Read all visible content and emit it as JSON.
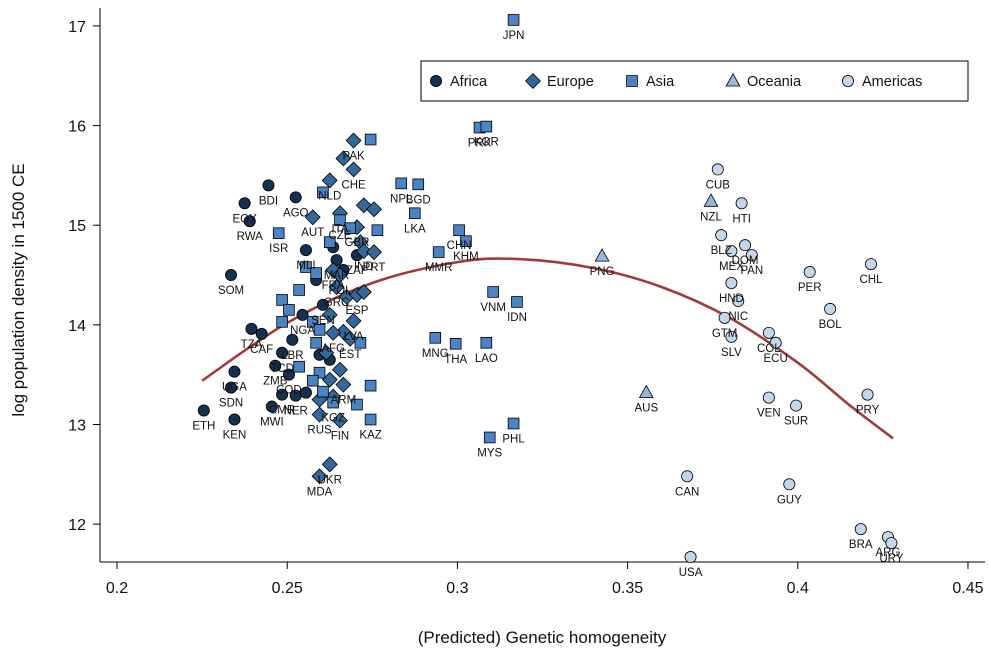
{
  "chart_data": {
    "type": "scatter",
    "xlabel": "(Predicted) Genetic homogeneity",
    "ylabel": "log population density in 1500 CE",
    "xlim": [
      0.195,
      0.455
    ],
    "ylim": [
      11.62,
      17.18
    ],
    "x_ticks": [
      "0.2",
      "0.25",
      "0.3",
      "0.35",
      "0.4",
      "0.45"
    ],
    "y_ticks": [
      "12",
      "13",
      "14",
      "15",
      "16",
      "17"
    ],
    "legend_position": "top-right",
    "colors": {
      "Africa": "#16304f",
      "Europe": "#35689a",
      "Asia": "#4a84c4",
      "Oceania": "#94b6dc",
      "Americas": "#c4d6ea",
      "fit": "#a33a3a"
    },
    "fit_curve": {
      "x": [
        0.225,
        0.25,
        0.275,
        0.3,
        0.318,
        0.34,
        0.36,
        0.38,
        0.4,
        0.415,
        0.428
      ],
      "y": [
        13.44,
        14.02,
        14.42,
        14.63,
        14.66,
        14.57,
        14.38,
        14.07,
        13.62,
        13.2,
        12.86
      ]
    },
    "series": [
      {
        "name": "Africa",
        "marker": "circle",
        "points": [
          {
            "x": 0.2255,
            "y": 13.14,
            "label": "ETH"
          },
          {
            "x": 0.2345,
            "y": 13.05,
            "label": "KEN"
          },
          {
            "x": 0.2335,
            "y": 13.37,
            "label": "SDN"
          },
          {
            "x": 0.2345,
            "y": 13.53,
            "label": "UGA"
          },
          {
            "x": 0.2335,
            "y": 14.5,
            "label": "SOM"
          },
          {
            "x": 0.2375,
            "y": 15.22,
            "label": "EGY"
          },
          {
            "x": 0.239,
            "y": 15.04,
            "label": "RWA"
          },
          {
            "x": 0.2445,
            "y": 15.4,
            "label": "BDI"
          },
          {
            "x": 0.2525,
            "y": 15.28,
            "label": "AGO"
          },
          {
            "x": 0.2395,
            "y": 13.96,
            "label": "TZA"
          },
          {
            "x": 0.2425,
            "y": 13.91,
            "label": "CAF"
          },
          {
            "x": 0.2455,
            "y": 13.18,
            "label": "MWI"
          },
          {
            "x": 0.2465,
            "y": 13.59,
            "label": "ZMB"
          },
          {
            "x": 0.2485,
            "y": 13.72,
            "label": "TCD"
          },
          {
            "x": 0.2485,
            "y": 13.3,
            "label": "CMR"
          },
          {
            "x": 0.2505,
            "y": 13.5,
            "label": "COD"
          },
          {
            "x": 0.2515,
            "y": 13.85,
            "label": "LBR"
          },
          {
            "x": 0.2525,
            "y": 13.29,
            "label": "NER"
          },
          {
            "x": 0.2545,
            "y": 14.1,
            "label": "NGA"
          },
          {
            "x": 0.2555,
            "y": 14.75,
            "label": "MLI"
          },
          {
            "x": 0.2555,
            "y": 13.32,
            "label": ""
          },
          {
            "x": 0.2585,
            "y": 14.45,
            "label": ""
          },
          {
            "x": 0.2595,
            "y": 13.7,
            "label": ""
          },
          {
            "x": 0.2605,
            "y": 14.2,
            "label": "SEN"
          },
          {
            "x": 0.2625,
            "y": 13.65,
            "label": ""
          },
          {
            "x": 0.2635,
            "y": 14.78,
            "label": ""
          },
          {
            "x": 0.2645,
            "y": 14.65,
            "label": "MAR"
          },
          {
            "x": 0.2665,
            "y": 14.55,
            "label": ""
          },
          {
            "x": 0.2705,
            "y": 14.7,
            "label": "ZAF"
          }
        ]
      },
      {
        "name": "Europe",
        "marker": "diamond",
        "points": [
          {
            "x": 0.2695,
            "y": 15.85,
            "label": "PAK"
          },
          {
            "x": 0.2665,
            "y": 15.67,
            "label": ""
          },
          {
            "x": 0.2695,
            "y": 15.56,
            "label": "CHE"
          },
          {
            "x": 0.2625,
            "y": 15.45,
            "label": "NLD"
          },
          {
            "x": 0.2725,
            "y": 15.2,
            "label": ""
          },
          {
            "x": 0.2755,
            "y": 15.16,
            "label": ""
          },
          {
            "x": 0.2575,
            "y": 15.08,
            "label": "AUT"
          },
          {
            "x": 0.2655,
            "y": 15.12,
            "label": "ITA"
          },
          {
            "x": 0.2705,
            "y": 14.98,
            "label": "GBR"
          },
          {
            "x": 0.2715,
            "y": 14.83,
            "label": ""
          },
          {
            "x": 0.2725,
            "y": 14.74,
            "label": "IND"
          },
          {
            "x": 0.2755,
            "y": 14.73,
            "label": "PRT"
          },
          {
            "x": 0.2635,
            "y": 14.55,
            "label": "FRA"
          },
          {
            "x": 0.2655,
            "y": 14.5,
            "label": "POL"
          },
          {
            "x": 0.2645,
            "y": 14.38,
            "label": "GRC"
          },
          {
            "x": 0.2675,
            "y": 14.28,
            "label": ""
          },
          {
            "x": 0.2705,
            "y": 14.3,
            "label": "ESP"
          },
          {
            "x": 0.2725,
            "y": 14.33,
            "label": ""
          },
          {
            "x": 0.2695,
            "y": 14.04,
            "label": "LVA"
          },
          {
            "x": 0.2665,
            "y": 13.93,
            "label": ""
          },
          {
            "x": 0.2685,
            "y": 13.86,
            "label": "EST"
          },
          {
            "x": 0.2635,
            "y": 13.92,
            "label": "AFG"
          },
          {
            "x": 0.2625,
            "y": 14.1,
            "label": ""
          },
          {
            "x": 0.2615,
            "y": 13.72,
            "label": ""
          },
          {
            "x": 0.2655,
            "y": 13.55,
            "label": ""
          },
          {
            "x": 0.2625,
            "y": 13.45,
            "label": ""
          },
          {
            "x": 0.2665,
            "y": 13.4,
            "label": "ARM"
          },
          {
            "x": 0.2595,
            "y": 13.25,
            "label": ""
          },
          {
            "x": 0.2635,
            "y": 13.28,
            "label": ""
          },
          {
            "x": 0.2595,
            "y": 13.1,
            "label": "RUS"
          },
          {
            "x": 0.2655,
            "y": 13.04,
            "label": "FIN"
          },
          {
            "x": 0.2625,
            "y": 12.6,
            "label": "UKR"
          },
          {
            "x": 0.2595,
            "y": 12.48,
            "label": "MDA"
          }
        ]
      },
      {
        "name": "Asia",
        "marker": "square",
        "points": [
          {
            "x": 0.3165,
            "y": 17.06,
            "label": "JPN"
          },
          {
            "x": 0.3065,
            "y": 15.98,
            "label": "PRK"
          },
          {
            "x": 0.3085,
            "y": 15.99,
            "label": "KOR"
          },
          {
            "x": 0.2745,
            "y": 15.86,
            "label": ""
          },
          {
            "x": 0.2835,
            "y": 15.42,
            "label": "NPL"
          },
          {
            "x": 0.2885,
            "y": 15.41,
            "label": "BGD"
          },
          {
            "x": 0.2875,
            "y": 15.12,
            "label": "LKA"
          },
          {
            "x": 0.2605,
            "y": 15.33,
            "label": ""
          },
          {
            "x": 0.2475,
            "y": 14.92,
            "label": "ISR"
          },
          {
            "x": 0.2655,
            "y": 15.05,
            "label": "CZE"
          },
          {
            "x": 0.2685,
            "y": 14.97,
            "label": ""
          },
          {
            "x": 0.2765,
            "y": 14.95,
            "label": ""
          },
          {
            "x": 0.2625,
            "y": 14.83,
            "label": ""
          },
          {
            "x": 0.3005,
            "y": 14.95,
            "label": "CHN"
          },
          {
            "x": 0.3025,
            "y": 14.84,
            "label": "KHM"
          },
          {
            "x": 0.2945,
            "y": 14.73,
            "label": "MMR"
          },
          {
            "x": 0.3105,
            "y": 14.33,
            "label": "VNM"
          },
          {
            "x": 0.3175,
            "y": 14.23,
            "label": "IDN"
          },
          {
            "x": 0.2935,
            "y": 13.87,
            "label": "MNG"
          },
          {
            "x": 0.2995,
            "y": 13.81,
            "label": "THA"
          },
          {
            "x": 0.3085,
            "y": 13.82,
            "label": "LAO"
          },
          {
            "x": 0.3095,
            "y": 12.87,
            "label": "MYS"
          },
          {
            "x": 0.3165,
            "y": 13.01,
            "label": "PHL"
          },
          {
            "x": 0.2555,
            "y": 14.58,
            "label": ""
          },
          {
            "x": 0.2585,
            "y": 14.52,
            "label": ""
          },
          {
            "x": 0.2535,
            "y": 14.35,
            "label": ""
          },
          {
            "x": 0.2485,
            "y": 14.25,
            "label": ""
          },
          {
            "x": 0.2505,
            "y": 14.15,
            "label": ""
          },
          {
            "x": 0.2485,
            "y": 14.03,
            "label": ""
          },
          {
            "x": 0.2575,
            "y": 14.03,
            "label": ""
          },
          {
            "x": 0.2595,
            "y": 13.95,
            "label": ""
          },
          {
            "x": 0.2585,
            "y": 13.82,
            "label": ""
          },
          {
            "x": 0.2535,
            "y": 13.58,
            "label": ""
          },
          {
            "x": 0.2595,
            "y": 13.52,
            "label": ""
          },
          {
            "x": 0.2575,
            "y": 13.44,
            "label": ""
          },
          {
            "x": 0.2605,
            "y": 13.33,
            "label": ""
          },
          {
            "x": 0.2635,
            "y": 13.22,
            "label": "KGZ"
          },
          {
            "x": 0.2705,
            "y": 13.2,
            "label": ""
          },
          {
            "x": 0.2745,
            "y": 13.39,
            "label": ""
          },
          {
            "x": 0.2745,
            "y": 13.05,
            "label": "KAZ"
          },
          {
            "x": 0.2715,
            "y": 13.82,
            "label": ""
          }
        ]
      },
      {
        "name": "Oceania",
        "marker": "triangle",
        "points": [
          {
            "x": 0.3745,
            "y": 15.24,
            "label": "NZL"
          },
          {
            "x": 0.3425,
            "y": 14.69,
            "label": "PNG"
          },
          {
            "x": 0.3555,
            "y": 13.32,
            "label": "AUS"
          }
        ]
      },
      {
        "name": "Americas",
        "marker": "circle",
        "points": [
          {
            "x": 0.3765,
            "y": 15.56,
            "label": "CUB"
          },
          {
            "x": 0.3835,
            "y": 15.22,
            "label": "HTI"
          },
          {
            "x": 0.3775,
            "y": 14.9,
            "label": "BLZ"
          },
          {
            "x": 0.3805,
            "y": 14.74,
            "label": "MEX"
          },
          {
            "x": 0.3845,
            "y": 14.8,
            "label": "DOM"
          },
          {
            "x": 0.3865,
            "y": 14.7,
            "label": "PAN"
          },
          {
            "x": 0.3805,
            "y": 14.42,
            "label": "HND"
          },
          {
            "x": 0.3825,
            "y": 14.24,
            "label": "NIC"
          },
          {
            "x": 0.3785,
            "y": 14.07,
            "label": "GTM"
          },
          {
            "x": 0.3805,
            "y": 13.88,
            "label": "SLV"
          },
          {
            "x": 0.3915,
            "y": 13.92,
            "label": "COL"
          },
          {
            "x": 0.3935,
            "y": 13.82,
            "label": "ECU"
          },
          {
            "x": 0.4035,
            "y": 14.53,
            "label": "PER"
          },
          {
            "x": 0.4215,
            "y": 14.61,
            "label": "CHL"
          },
          {
            "x": 0.4095,
            "y": 14.16,
            "label": "BOL"
          },
          {
            "x": 0.3915,
            "y": 13.27,
            "label": "VEN"
          },
          {
            "x": 0.3995,
            "y": 13.19,
            "label": "SUR"
          },
          {
            "x": 0.4205,
            "y": 13.3,
            "label": "PRY"
          },
          {
            "x": 0.3675,
            "y": 12.48,
            "label": "CAN"
          },
          {
            "x": 0.3975,
            "y": 12.4,
            "label": "GUY"
          },
          {
            "x": 0.3685,
            "y": 11.67,
            "label": "USA"
          },
          {
            "x": 0.4185,
            "y": 11.95,
            "label": "BRA"
          },
          {
            "x": 0.4265,
            "y": 11.87,
            "label": "ARG"
          },
          {
            "x": 0.4275,
            "y": 11.81,
            "label": "URY"
          }
        ]
      }
    ]
  }
}
